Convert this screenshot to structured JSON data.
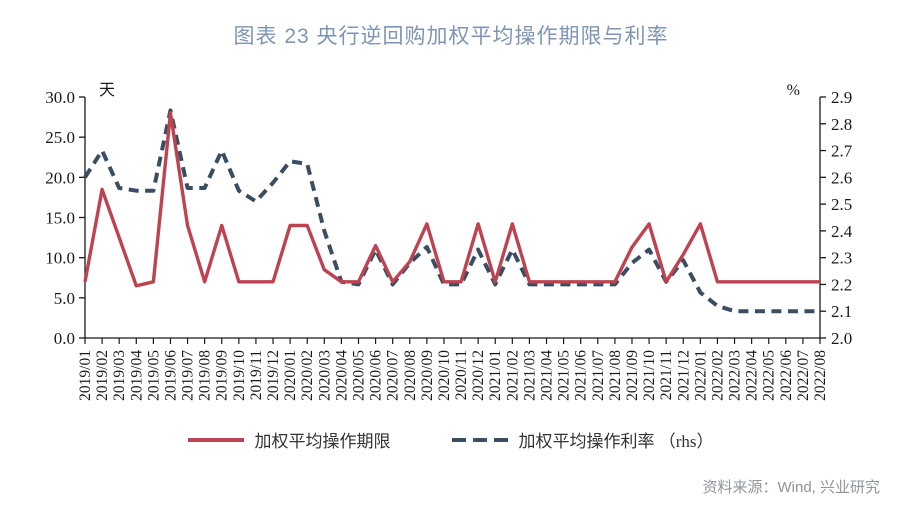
{
  "title": "图表 23 央行逆回购加权平均操作期限与利率",
  "source": "资料来源：Wind, 兴业研究",
  "colors": {
    "term_line": "#BE4350",
    "rate_line": "#3A4E63",
    "title_text": "#7E95B5",
    "axis_text": "#1a1a1a",
    "source_text": "#8f959c"
  },
  "chart_data": {
    "type": "line",
    "title": "图表 23 央行逆回购加权平均操作期限与利率",
    "grid": false,
    "legend_position": "bottom",
    "x": [
      "2019/01",
      "2019/02",
      "2019/03",
      "2019/04",
      "2019/05",
      "2019/06",
      "2019/07",
      "2019/08",
      "2019/09",
      "2019/10",
      "2019/11",
      "2019/12",
      "2020/01",
      "2020/02",
      "2020/03",
      "2020/04",
      "2020/05",
      "2020/06",
      "2020/07",
      "2020/08",
      "2020/09",
      "2020/10",
      "2020/11",
      "2020/12",
      "2021/01",
      "2021/02",
      "2021/03",
      "2021/04",
      "2021/05",
      "2021/06",
      "2021/07",
      "2021/08",
      "2021/09",
      "2021/10",
      "2021/11",
      "2021/12",
      "2022/01",
      "2022/02",
      "2022/03",
      "2022/04",
      "2022/05",
      "2022/06",
      "2022/07",
      "2022/08"
    ],
    "left_axis": {
      "unit": "天",
      "min": 0,
      "max": 30,
      "tick_labels": [
        "30.0",
        "25.0",
        "20.0",
        "15.0",
        "10.0",
        "5.0",
        "0.0"
      ]
    },
    "right_axis": {
      "unit": "%",
      "min": 2.0,
      "max": 2.9,
      "tick_labels": [
        "2.9",
        "2.8",
        "2.7",
        "2.6",
        "2.5",
        "2.4",
        "2.3",
        "2.2",
        "2.1",
        "2.0"
      ]
    },
    "series": [
      {
        "name": "加权平均操作期限",
        "axis": "left",
        "line_style": "solid",
        "color": "#BE4350",
        "values": [
          7.0,
          18.5,
          12.5,
          6.5,
          7.0,
          28.0,
          14.0,
          7.0,
          14.0,
          7.0,
          7.0,
          7.0,
          14.0,
          14.0,
          8.5,
          7.0,
          7.0,
          11.5,
          7.0,
          9.5,
          14.2,
          7.0,
          7.0,
          14.2,
          7.0,
          14.2,
          7.0,
          7.0,
          7.0,
          7.0,
          7.0,
          7.0,
          11.3,
          14.2,
          7.0,
          10.4,
          14.2,
          7.0,
          7.0,
          7.0,
          7.0,
          7.0,
          7.0,
          7.0
        ]
      },
      {
        "name": "加权平均操作利率 （rhs）",
        "axis": "right",
        "line_style": "dashed",
        "color": "#3A4E63",
        "values": [
          2.6,
          2.7,
          2.56,
          2.55,
          2.55,
          2.85,
          2.56,
          2.56,
          2.7,
          2.55,
          2.51,
          2.58,
          2.66,
          2.65,
          2.4,
          2.21,
          2.2,
          2.33,
          2.2,
          2.28,
          2.34,
          2.2,
          2.2,
          2.33,
          2.2,
          2.33,
          2.2,
          2.2,
          2.2,
          2.2,
          2.2,
          2.2,
          2.28,
          2.33,
          2.21,
          2.29,
          2.17,
          2.12,
          2.1,
          2.1,
          2.1,
          2.1,
          2.1,
          2.1
        ]
      }
    ]
  }
}
